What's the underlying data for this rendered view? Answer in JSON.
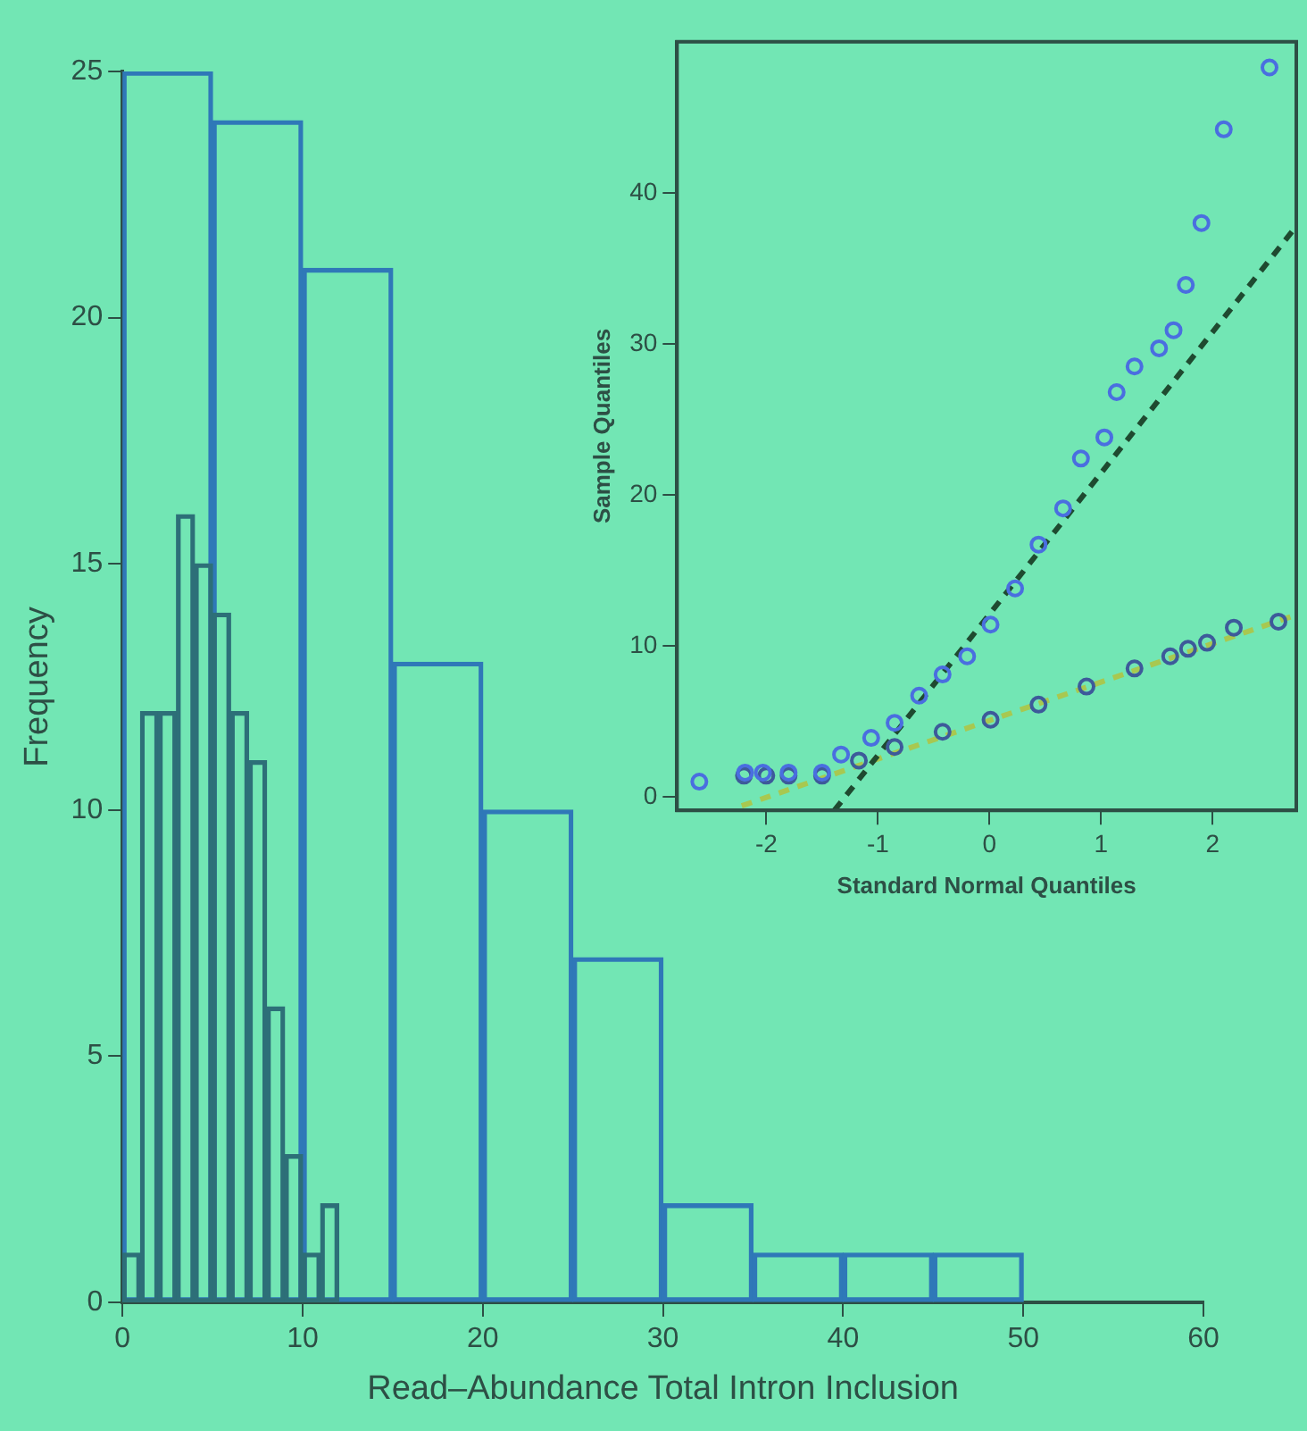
{
  "chart_data": [
    {
      "type": "histogram",
      "xlabel": "Read–Abundance Total Intron Inclusion",
      "ylabel": "Frequency",
      "xlim": [
        0,
        60
      ],
      "xticks": [
        0,
        10,
        20,
        30,
        40,
        50,
        60
      ],
      "ylim": [
        0,
        25
      ],
      "yticks": [
        0,
        5,
        10,
        15,
        20,
        25
      ],
      "grid": false,
      "color": "#2f78b8",
      "bins": [
        0,
        5,
        10,
        15,
        20,
        25,
        30,
        35,
        40,
        45,
        50
      ],
      "values": [
        25,
        24,
        21,
        13,
        10,
        7,
        2,
        1,
        1,
        1
      ]
    },
    {
      "type": "histogram",
      "xlim": [
        0,
        60
      ],
      "ylim": [
        0,
        25
      ],
      "tick_labels": false,
      "grid": false,
      "color": "#2d6f78",
      "bins": [
        0,
        1,
        2,
        3,
        4,
        5,
        6,
        7,
        8,
        9,
        10,
        11,
        12
      ],
      "values": [
        1,
        12,
        12,
        16,
        15,
        14,
        12,
        11,
        6,
        3,
        1,
        2
      ]
    },
    {
      "type": "scatter",
      "xlabel": "Standard Normal Quantiles",
      "ylabel": "Sample Quantiles",
      "xlim": [
        -2.8,
        2.75
      ],
      "xticks": [
        -2,
        -1,
        0,
        1,
        2
      ],
      "ylim": [
        -0.9,
        50
      ],
      "yticks": [
        0,
        10,
        20,
        30,
        40
      ],
      "grid": false,
      "marker": "circle",
      "series": [
        {
          "color": "#4a6ee0",
          "x": [
            -2.6,
            -2.19,
            -2.03,
            -1.8,
            -1.5,
            -1.33,
            -1.06,
            -0.85,
            -0.63,
            -0.42,
            -0.2,
            0.01,
            0.23,
            0.44,
            0.66,
            0.82,
            1.03,
            1.14,
            1.3,
            1.52,
            1.65,
            1.76,
            1.9,
            2.1,
            2.51
          ],
          "values": [
            1,
            1.6,
            1.6,
            1.6,
            1.6,
            2.8,
            3.9,
            4.9,
            6.7,
            8.1,
            9.3,
            11.4,
            13.8,
            16.7,
            19.1,
            22.4,
            23.8,
            26.8,
            28.5,
            29.7,
            30.9,
            33.9,
            38,
            44.2,
            48.3
          ]
        },
        {
          "color": "#3d5a9a",
          "x": [
            -2.2,
            -2,
            -1.8,
            -1.5,
            -1.17,
            -0.85,
            -0.42,
            0.01,
            0.44,
            0.87,
            1.3,
            1.62,
            1.78,
            1.95,
            2.19,
            2.59
          ],
          "values": [
            1.4,
            1.4,
            1.4,
            1.4,
            2.4,
            3.3,
            4.3,
            5.1,
            6.1,
            7.3,
            8.5,
            9.3,
            9.8,
            10.2,
            11.2,
            11.6
          ]
        },
        {
          "type": "line",
          "line_style": "dashed",
          "marker": "none",
          "color": "#1f4a30",
          "x": [
            -1.39,
            2.73
          ],
          "values": [
            -0.9,
            37.6
          ]
        },
        {
          "type": "line",
          "line_style": "dashed",
          "marker": "none",
          "color": "#a8c850",
          "x": [
            -2.22,
            2.73
          ],
          "values": [
            -0.6,
            12
          ]
        }
      ]
    }
  ]
}
